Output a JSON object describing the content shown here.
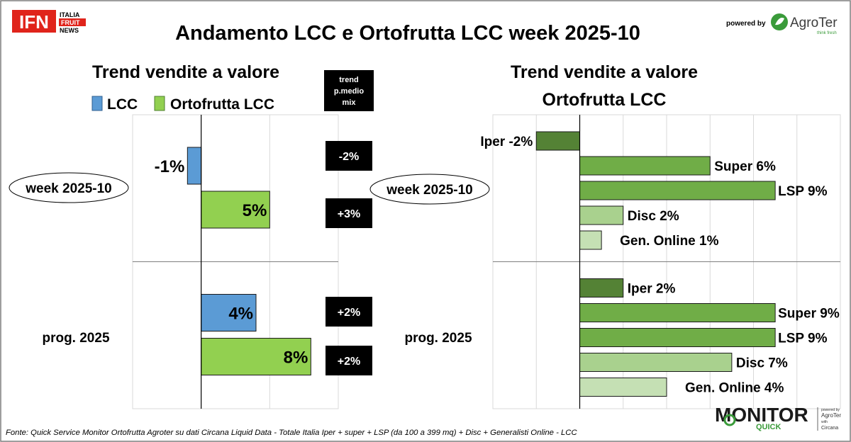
{
  "header": {
    "title": "Andamento LCC e Ortofrutta LCC week 2025-10",
    "powered_by": "powered by"
  },
  "logos": {
    "ifn": {
      "main": "IFN",
      "line1": "ITALIA",
      "line2": "FRUIT",
      "line3": "NEWS"
    },
    "agroter": {
      "name": "AgroTer",
      "tagline": "think fresh"
    },
    "monitor": {
      "word1": "MONITOR",
      "word2": "QUICK",
      "powered": "powered by",
      "brand": "AgroTer",
      "with": "with",
      "partner": "Circana"
    }
  },
  "footer": {
    "source": "Fonte: Quick Service Monitor Ortofrutta Agroter su dati Circana Liquid Data - Totale Italia Iper + super + LSP (da 100 a 399 mq) + Disc + Generalisti Online - LCC"
  },
  "colors": {
    "lcc": "#5b9bd5",
    "ortofrutta": "#92d050",
    "iper": "#548235",
    "super": "#70ad47",
    "lsp": "#70ad47",
    "disc": "#a9d18e",
    "online": "#c5e0b4",
    "badge": "#000000",
    "brand_red": "#e0241b",
    "brand_green": "#3a9b3a"
  },
  "chart_data": [
    {
      "type": "bar",
      "orientation": "horizontal",
      "title": "Trend vendite a valore",
      "categories": [
        "week 2025-10",
        "prog. 2025"
      ],
      "series": [
        {
          "name": "LCC",
          "values": [
            -1,
            4
          ],
          "labels": [
            "-1%",
            "4%"
          ]
        },
        {
          "name": "Ortofrutta LCC",
          "values": [
            5,
            8
          ],
          "labels": [
            "5%",
            "8%"
          ]
        }
      ],
      "xlim": [
        -5,
        10
      ],
      "grid": true,
      "legend": "top",
      "side_table": {
        "header": "trend p.medio mix",
        "header_lines": [
          "trend",
          "p.medio",
          "mix"
        ],
        "values": [
          [
            "-2%",
            "+3%"
          ],
          [
            "+2%",
            "+2%"
          ]
        ]
      }
    },
    {
      "type": "bar",
      "orientation": "horizontal",
      "title": "Trend vendite a valore Ortofrutta LCC",
      "title_lines": [
        "Trend vendite a valore",
        "Ortofrutta LCC"
      ],
      "categories": [
        "week 2025-10",
        "prog. 2025"
      ],
      "channels": [
        "Iper",
        "Super",
        "LSP",
        "Disc",
        "Gen. Online"
      ],
      "values": [
        [
          -2,
          6,
          9,
          2,
          1
        ],
        [
          2,
          9,
          9,
          7,
          4
        ]
      ],
      "labels": [
        [
          "Iper -2%",
          "Super 6%",
          "LSP 9%",
          "Disc 2%",
          "Gen. Online 1%"
        ],
        [
          "Iper 2%",
          "Super 9%",
          "LSP 9%",
          "Disc 7%",
          "Gen. Online 4%"
        ]
      ],
      "xlim": [
        -4,
        12
      ],
      "grid": true
    }
  ]
}
